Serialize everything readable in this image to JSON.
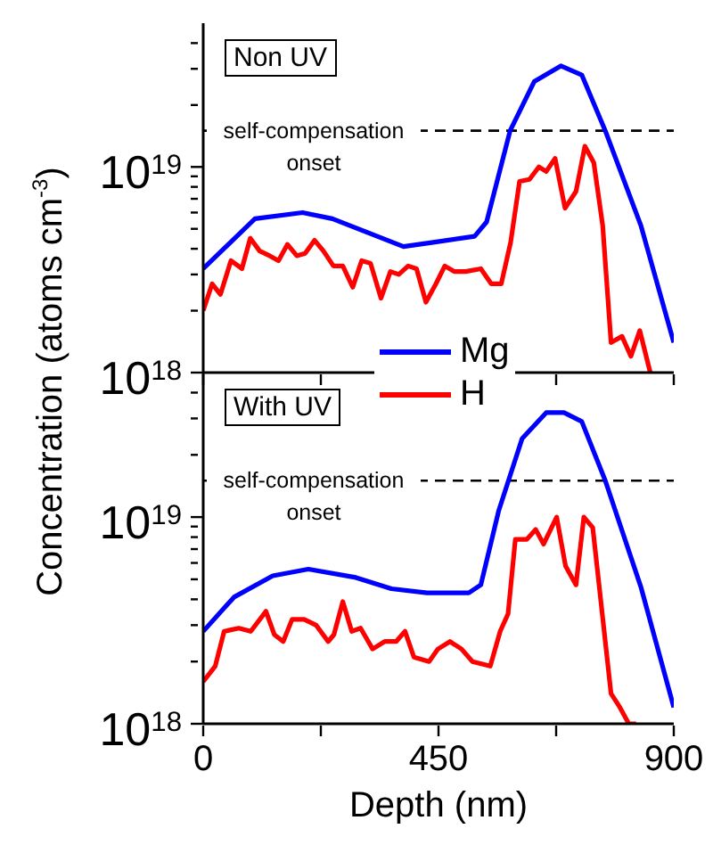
{
  "chart_data": [
    {
      "type": "line",
      "ylabel": "Concentration (atoms cm$^{-3}$)",
      "annotations": [
        "Non UV"
      ],
      "legend": "bottom",
      "log": "y",
      "grid": false,
      "tick_labels": "y",
      "line_style": "solid",
      "marker": "none",
      "xlim": [
        0,
        900
      ],
      "xticks": [
        {
          "value": 0,
          "label": null
        },
        {
          "value": 225,
          "label": null
        },
        {
          "value": 450,
          "label": null
        },
        {
          "value": 675,
          "label": null
        },
        {
          "value": 900,
          "label": null
        }
      ],
      "ylim": [
        1e+18,
        5e+19
      ],
      "yticks": [
        {
          "value": 1e+18,
          "label": "10$^{18}$"
        },
        {
          "value": 2e+18,
          "label": null
        },
        {
          "value": 3e+18,
          "label": null
        },
        {
          "value": 4e+18,
          "label": null
        },
        {
          "value": 5e+18,
          "label": null
        },
        {
          "value": 6e+18,
          "label": null
        },
        {
          "value": 7e+18,
          "label": null
        },
        {
          "value": 8e+18,
          "label": null
        },
        {
          "value": 9e+18,
          "label": null
        },
        {
          "value": 1e+19,
          "label": "10$^{19}$"
        },
        {
          "value": 2e+19,
          "label": null
        },
        {
          "value": 3e+19,
          "label": null
        },
        {
          "value": 4e+19,
          "label": null
        }
      ],
      "ref_lines": [
        {
          "axis": "y",
          "value": 1.5e+19,
          "label": "self-compensation onset",
          "color": "#000000",
          "line_style": "dashed"
        }
      ],
      "series": [
        {
          "name": "Mg",
          "color": "#0000ff",
          "x": [
            0,
            99,
            190,
            247,
            383,
            440,
            519,
            542,
            587,
            633,
            684,
            724,
            769,
            837,
            900
          ],
          "values": [
            3.2e+18,
            5.6e+18,
            6e+18,
            5.6e+18,
            4.1e+18,
            4.3e+18,
            4.6e+18,
            5.4e+18,
            1.5e+19,
            2.6e+19,
            3.1e+19,
            2.8e+19,
            1.5e+19,
            5.2e+18,
            1.4e+18
          ]
        },
        {
          "name": "H",
          "color": "#ff0000",
          "x": [
            0,
            17,
            33,
            53,
            74,
            90,
            108,
            127,
            144,
            161,
            179,
            195,
            213,
            230,
            249,
            267,
            286,
            303,
            320,
            340,
            358,
            374,
            392,
            408,
            426,
            445,
            462,
            480,
            502,
            531,
            551,
            570,
            588,
            605,
            624,
            642,
            656,
            673,
            692,
            713,
            730,
            747,
            764,
            780,
            801,
            818,
            835,
            855
          ],
          "values": [
            2e+18,
            2.7e+18,
            2.4e+18,
            3.5e+18,
            3.2e+18,
            4.5e+18,
            3.9e+18,
            3.7e+18,
            3.5e+18,
            4.2e+18,
            3.7e+18,
            3.8e+18,
            4.4e+18,
            3.9e+18,
            3.3e+18,
            3.3e+18,
            2.6e+18,
            3.5e+18,
            3.4e+18,
            2.3e+18,
            3.1e+18,
            3e+18,
            3.3e+18,
            3.2e+18,
            2.2e+18,
            2.7e+18,
            3.3e+18,
            3.1e+18,
            3.1e+18,
            3.2e+18,
            2.7e+18,
            2.7e+18,
            4.3e+18,
            8.5e+18,
            8.7e+18,
            1e+19,
            9.5e+18,
            1.1e+19,
            6.3e+18,
            7.6e+18,
            1.26e+19,
            1.05e+19,
            5.2e+18,
            1.4e+18,
            1.5e+18,
            1.2e+18,
            1.6e+18,
            1e+18
          ]
        }
      ]
    },
    {
      "type": "line",
      "xlabel": "Depth (nm)",
      "annotations": [
        "With UV"
      ],
      "log": "y",
      "grid": false,
      "line_style": "solid",
      "marker": "none",
      "xlim": [
        0,
        900
      ],
      "xticks": [
        0,
        {
          "value": 225,
          "label": null
        },
        450,
        {
          "value": 675,
          "label": null
        },
        900
      ],
      "ylim": [
        1e+18,
        5e+19
      ],
      "yticks": [
        {
          "value": 1e+18,
          "label": "10$^{18}$"
        },
        {
          "value": 2e+18,
          "label": null
        },
        {
          "value": 3e+18,
          "label": null
        },
        {
          "value": 4e+18,
          "label": null
        },
        {
          "value": 5e+18,
          "label": null
        },
        {
          "value": 6e+18,
          "label": null
        },
        {
          "value": 7e+18,
          "label": null
        },
        {
          "value": 8e+18,
          "label": null
        },
        {
          "value": 9e+18,
          "label": null
        },
        {
          "value": 1e+19,
          "label": "10$^{19}$"
        },
        {
          "value": 2e+19,
          "label": null
        },
        {
          "value": 3e+19,
          "label": null
        },
        {
          "value": 4e+19,
          "label": null
        }
      ],
      "ref_lines": [
        {
          "axis": "y",
          "value": 1.5e+19,
          "label": "self-compensation onset",
          "color": "#000000",
          "line_style": "dashed"
        }
      ],
      "series": [
        {
          "color": "#0000ff",
          "x": [
            0,
            59,
            133,
            201,
            292,
            360,
            428,
            508,
            531,
            565,
            610,
            656,
            690,
            724,
            769,
            837,
            900
          ],
          "values": [
            2.8e+18,
            4.1e+18,
            5.2e+18,
            5.6e+18,
            5.1e+18,
            4.5e+18,
            4.3e+18,
            4.3e+18,
            4.7e+18,
            1.07e+19,
            2.4e+19,
            3.2e+19,
            3.2e+19,
            2.9e+19,
            1.5e+19,
            4.6e+18,
            1.2e+18
          ]
        },
        {
          "color": "#ff0000",
          "x": [
            0,
            23,
            40,
            68,
            91,
            120,
            136,
            153,
            170,
            193,
            216,
            239,
            250,
            267,
            284,
            301,
            324,
            347,
            369,
            386,
            403,
            432,
            449,
            472,
            494,
            515,
            549,
            568,
            583,
            597,
            619,
            636,
            651,
            676,
            693,
            713,
            728,
            745,
            780,
            797,
            814,
            828
          ],
          "values": [
            1.6e+18,
            1.9e+18,
            2.8e+18,
            2.9e+18,
            2.8e+18,
            3.5e+18,
            2.7e+18,
            2.5e+18,
            3.2e+18,
            3.2e+18,
            3e+18,
            2.5e+18,
            2.7e+18,
            3.9e+18,
            2.8e+18,
            2.9e+18,
            2.3e+18,
            2.5e+18,
            2.5e+18,
            2.8e+18,
            2.1e+18,
            2e+18,
            2.3e+18,
            2.5e+18,
            2.3e+18,
            2e+18,
            1.9e+18,
            2.8e+18,
            3.4e+18,
            7.8e+18,
            7.8e+18,
            8.7e+18,
            7.4e+18,
            1e+19,
            5.8e+18,
            4.7e+18,
            1e+19,
            8.9e+18,
            1.4e+18,
            1.2e+18,
            1e+18,
            1e+18
          ]
        }
      ]
    }
  ]
}
